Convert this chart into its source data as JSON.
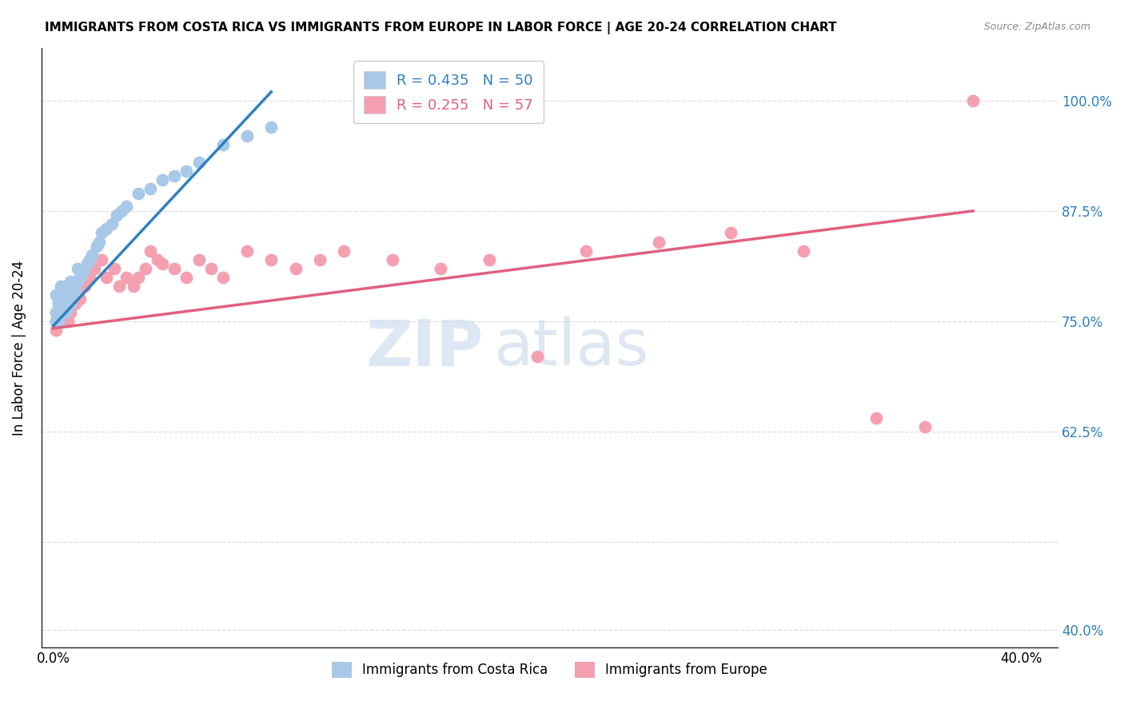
{
  "title": "IMMIGRANTS FROM COSTA RICA VS IMMIGRANTS FROM EUROPE IN LABOR FORCE | AGE 20-24 CORRELATION CHART",
  "source": "Source: ZipAtlas.com",
  "ylabel": "In Labor Force | Age 20-24",
  "legend_label_blue": "Immigrants from Costa Rica",
  "legend_label_pink": "Immigrants from Europe",
  "R_blue": 0.435,
  "N_blue": 50,
  "R_pink": 0.255,
  "N_pink": 57,
  "blue_color": "#a8c8e8",
  "pink_color": "#f4a0b0",
  "blue_line_color": "#3080c0",
  "pink_line_color": "#e06080",
  "blue_x": [
    0.001,
    0.001,
    0.001,
    0.002,
    0.002,
    0.002,
    0.002,
    0.003,
    0.003,
    0.003,
    0.003,
    0.004,
    0.004,
    0.005,
    0.005,
    0.005,
    0.006,
    0.006,
    0.006,
    0.007,
    0.007,
    0.007,
    0.008,
    0.008,
    0.009,
    0.01,
    0.01,
    0.011,
    0.012,
    0.013,
    0.014,
    0.015,
    0.016,
    0.018,
    0.019,
    0.02,
    0.022,
    0.024,
    0.026,
    0.028,
    0.03,
    0.035,
    0.04,
    0.045,
    0.05,
    0.055,
    0.06,
    0.07,
    0.08,
    0.09
  ],
  "blue_y": [
    0.75,
    0.76,
    0.78,
    0.75,
    0.76,
    0.77,
    0.78,
    0.76,
    0.77,
    0.78,
    0.79,
    0.77,
    0.78,
    0.76,
    0.775,
    0.785,
    0.765,
    0.775,
    0.79,
    0.77,
    0.78,
    0.795,
    0.78,
    0.79,
    0.785,
    0.795,
    0.81,
    0.8,
    0.805,
    0.81,
    0.815,
    0.82,
    0.825,
    0.835,
    0.84,
    0.85,
    0.855,
    0.86,
    0.87,
    0.875,
    0.88,
    0.895,
    0.9,
    0.91,
    0.915,
    0.92,
    0.93,
    0.95,
    0.96,
    0.97
  ],
  "pink_x": [
    0.001,
    0.001,
    0.001,
    0.002,
    0.002,
    0.002,
    0.003,
    0.003,
    0.003,
    0.004,
    0.004,
    0.005,
    0.005,
    0.005,
    0.006,
    0.006,
    0.006,
    0.007,
    0.008,
    0.009,
    0.01,
    0.011,
    0.013,
    0.015,
    0.017,
    0.02,
    0.022,
    0.025,
    0.027,
    0.03,
    0.033,
    0.035,
    0.038,
    0.04,
    0.043,
    0.045,
    0.05,
    0.055,
    0.06,
    0.065,
    0.07,
    0.08,
    0.09,
    0.1,
    0.11,
    0.12,
    0.14,
    0.16,
    0.18,
    0.2,
    0.22,
    0.25,
    0.28,
    0.31,
    0.34,
    0.36,
    0.38
  ],
  "pink_y": [
    0.75,
    0.76,
    0.74,
    0.76,
    0.775,
    0.755,
    0.77,
    0.76,
    0.75,
    0.78,
    0.77,
    0.79,
    0.78,
    0.775,
    0.76,
    0.75,
    0.77,
    0.76,
    0.78,
    0.77,
    0.78,
    0.775,
    0.79,
    0.8,
    0.81,
    0.82,
    0.8,
    0.81,
    0.79,
    0.8,
    0.79,
    0.8,
    0.81,
    0.83,
    0.82,
    0.815,
    0.81,
    0.8,
    0.82,
    0.81,
    0.8,
    0.83,
    0.82,
    0.81,
    0.82,
    0.83,
    0.82,
    0.81,
    0.82,
    0.71,
    0.83,
    0.84,
    0.85,
    0.83,
    0.64,
    0.63,
    1.0
  ],
  "xlim": [
    -0.005,
    0.415
  ],
  "ylim": [
    0.38,
    1.06
  ],
  "x_tick_positions": [
    0.0,
    0.05,
    0.1,
    0.15,
    0.2,
    0.25,
    0.3,
    0.35,
    0.4
  ],
  "x_tick_labels": [
    "0.0%",
    "",
    "",
    "",
    "",
    "",
    "",
    "",
    "40.0%"
  ],
  "y_tick_positions": [
    0.4,
    0.5,
    0.625,
    0.75,
    0.875,
    1.0
  ],
  "y_tick_labels_right": [
    "40.0%",
    "",
    "62.5%",
    "75.0%",
    "87.5%",
    "100.0%"
  ],
  "blue_line_x0": 0.0,
  "blue_line_y0": 0.745,
  "blue_line_x1": 0.09,
  "blue_line_y1": 1.01,
  "pink_line_x0": 0.0,
  "pink_line_y0": 0.742,
  "pink_line_x1": 0.38,
  "pink_line_y1": 0.875
}
